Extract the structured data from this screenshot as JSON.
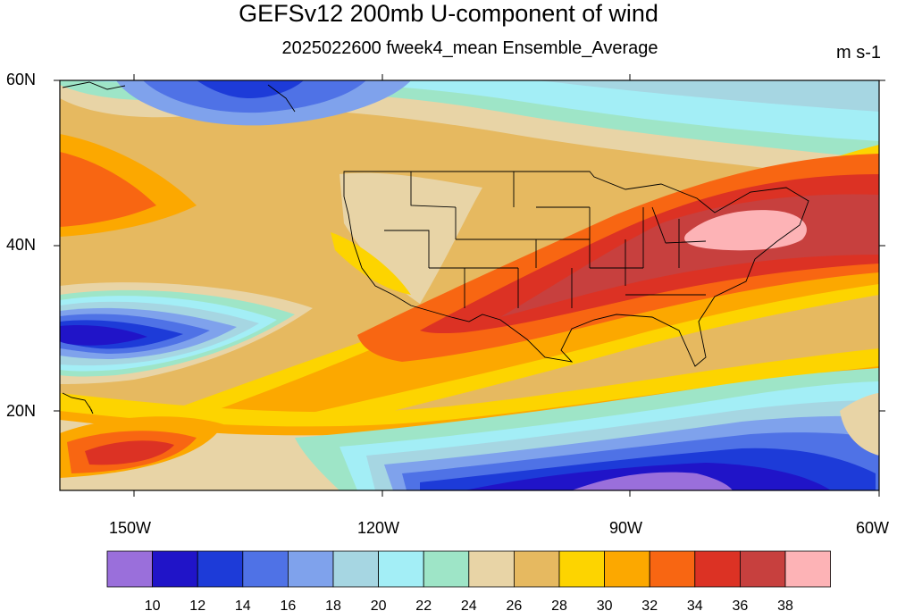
{
  "title": "GEFSv12 200mb U-component of wind",
  "subtitle": "2025022600 fweek4_mean Ensemble_Average",
  "units": "m s-1",
  "lat_labels": [
    "60N",
    "40N",
    "20N"
  ],
  "lon_labels": [
    "150W",
    "120W",
    "90W",
    "60W"
  ],
  "colorbar": {
    "levels": [
      "10",
      "12",
      "14",
      "16",
      "18",
      "20",
      "22",
      "24",
      "26",
      "28",
      "30",
      "32",
      "34",
      "36",
      "38"
    ],
    "colors": [
      "#9a6fdb",
      "#2014c8",
      "#1d3bd8",
      "#4f72e6",
      "#7fa2ec",
      "#a6d6e2",
      "#a3eef6",
      "#9ee5c7",
      "#e8d4a6",
      "#e6b960",
      "#fdd400",
      "#fca800",
      "#f86612",
      "#dc3224",
      "#c7403e",
      "#fdb3b6"
    ]
  }
}
